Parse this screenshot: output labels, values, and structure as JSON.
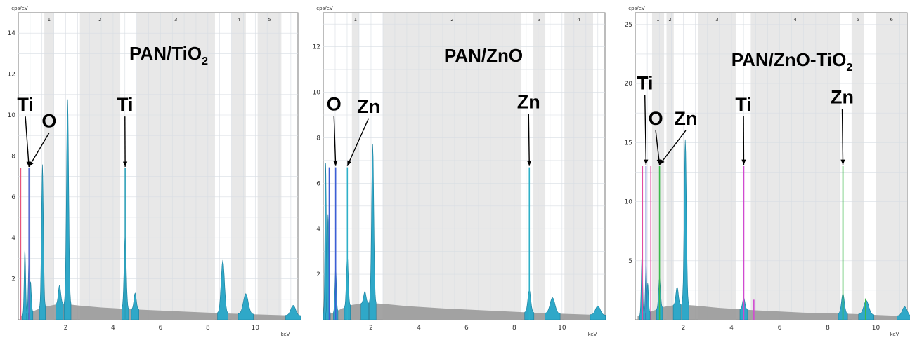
{
  "chart_data": [
    {
      "type": "area",
      "title": "PAN/TiO",
      "title_sub": "2",
      "ylabel": "cps/eV",
      "xlabel": "keV",
      "xlim": [
        0,
        11.8
      ],
      "ylim": [
        0,
        15
      ],
      "xticks": [
        2,
        4,
        6,
        8,
        10
      ],
      "yticks": [
        2,
        4,
        6,
        8,
        10,
        12,
        14
      ],
      "regions": [
        {
          "label": "1",
          "from": 1.1,
          "to": 1.5
        },
        {
          "label": "2",
          "from": 2.6,
          "to": 4.3
        },
        {
          "label": "3",
          "from": 5.0,
          "to": 8.3
        },
        {
          "label": "4",
          "from": 9.0,
          "to": 9.6
        },
        {
          "label": "5",
          "from": 10.1,
          "to": 11.1
        }
      ],
      "background": [
        [
          0.1,
          0.2
        ],
        [
          0.4,
          0.3
        ],
        [
          0.8,
          0.5
        ],
        [
          1.2,
          0.65
        ],
        [
          1.8,
          0.8
        ],
        [
          2.5,
          0.7
        ],
        [
          3.5,
          0.6
        ],
        [
          5,
          0.5
        ],
        [
          7,
          0.4
        ],
        [
          9,
          0.3
        ],
        [
          11.8,
          0.2
        ]
      ],
      "peaks": [
        {
          "x": 0.28,
          "y": 3.2,
          "w": 0.03
        },
        {
          "x": 0.45,
          "y": 2.6,
          "w": 0.03
        },
        {
          "x": 0.52,
          "y": 1.5,
          "w": 0.03
        },
        {
          "x": 1.02,
          "y": 7.0,
          "w": 0.04
        },
        {
          "x": 1.74,
          "y": 0.9,
          "w": 0.05
        },
        {
          "x": 2.08,
          "y": 10.0,
          "w": 0.045
        },
        {
          "x": 4.51,
          "y": 3.6,
          "w": 0.045
        },
        {
          "x": 4.93,
          "y": 0.8,
          "w": 0.05
        },
        {
          "x": 8.63,
          "y": 2.6,
          "w": 0.07
        },
        {
          "x": 9.6,
          "y": 1.0,
          "w": 0.1
        },
        {
          "x": 11.6,
          "y": 0.5,
          "w": 0.1
        }
      ],
      "element_lines": [
        {
          "x": 0.1,
          "y": 7.4,
          "color": "#e8547a"
        },
        {
          "x": 0.45,
          "y": 7.4,
          "color": "#5a6ecf"
        },
        {
          "x": 4.51,
          "y": 7.4,
          "color": "#2fa0b8"
        }
      ],
      "annotations": [
        {
          "text": "Ti",
          "x": 0.3,
          "y": 10.2
        },
        {
          "text": "O",
          "x": 1.3,
          "y": 9.4
        },
        {
          "text": "Ti",
          "x": 4.5,
          "y": 10.2
        }
      ]
    },
    {
      "type": "area",
      "title": "PAN/ZnO",
      "title_sub": "",
      "ylabel": "cps/eV",
      "xlabel": "keV",
      "xlim": [
        0,
        11.8
      ],
      "ylim": [
        0,
        13.5
      ],
      "xticks": [
        2,
        4,
        6,
        8,
        10
      ],
      "yticks": [
        2,
        4,
        6,
        8,
        10,
        12
      ],
      "regions": [
        {
          "label": "1",
          "from": 1.2,
          "to": 1.5
        },
        {
          "label": "2",
          "from": 2.5,
          "to": 8.3
        },
        {
          "label": "3",
          "from": 8.8,
          "to": 9.3
        },
        {
          "label": "4",
          "from": 10.1,
          "to": 11.3
        }
      ],
      "background": [
        [
          0.1,
          0.2
        ],
        [
          0.4,
          0.3
        ],
        [
          0.8,
          0.5
        ],
        [
          1.2,
          0.65
        ],
        [
          1.8,
          0.75
        ],
        [
          2.5,
          0.7
        ],
        [
          3.5,
          0.6
        ],
        [
          5,
          0.5
        ],
        [
          7,
          0.4
        ],
        [
          9,
          0.3
        ],
        [
          11.8,
          0.2
        ]
      ],
      "peaks": [
        {
          "x": 0.1,
          "y": 6.7,
          "w": 0.03
        },
        {
          "x": 0.2,
          "y": 4.4,
          "w": 0.03
        },
        {
          "x": 0.52,
          "y": 2.0,
          "w": 0.03
        },
        {
          "x": 1.01,
          "y": 2.2,
          "w": 0.04
        },
        {
          "x": 1.74,
          "y": 0.5,
          "w": 0.05
        },
        {
          "x": 2.07,
          "y": 7.0,
          "w": 0.045
        },
        {
          "x": 8.63,
          "y": 1.0,
          "w": 0.06
        },
        {
          "x": 9.6,
          "y": 0.7,
          "w": 0.1
        },
        {
          "x": 11.5,
          "y": 0.4,
          "w": 0.1
        }
      ],
      "element_lines": [
        {
          "x": 0.25,
          "y": 6.7,
          "color": "#3d5fd6"
        },
        {
          "x": 0.52,
          "y": 6.7,
          "color": "#3d5fd6"
        },
        {
          "x": 1.01,
          "y": 6.7,
          "color": "#2fb0c8"
        },
        {
          "x": 8.63,
          "y": 6.7,
          "color": "#2fb0c8"
        }
      ],
      "annotations": [
        {
          "text": "O",
          "x": 0.45,
          "y": 9.2
        },
        {
          "text": "Zn",
          "x": 1.9,
          "y": 9.1
        },
        {
          "text": "Zn",
          "x": 8.6,
          "y": 9.3
        }
      ]
    },
    {
      "type": "area",
      "title": "PAN/ZnO-TiO",
      "title_sub": "2",
      "ylabel": "cps/eV",
      "xlabel": "keV",
      "xlim": [
        0,
        11.3
      ],
      "ylim": [
        0,
        26
      ],
      "xticks": [
        2,
        4,
        6,
        8,
        10
      ],
      "yticks": [
        5,
        10,
        15,
        20,
        25
      ],
      "regions": [
        {
          "label": "1",
          "from": 0.7,
          "to": 1.2
        },
        {
          "label": "2",
          "from": 1.3,
          "to": 1.6
        },
        {
          "label": "3",
          "from": 2.6,
          "to": 4.2
        },
        {
          "label": "4",
          "from": 4.8,
          "to": 8.5
        },
        {
          "label": "5",
          "from": 9.0,
          "to": 9.5
        },
        {
          "label": "6",
          "from": 10.0,
          "to": 11.3
        }
      ],
      "background": [
        [
          0.1,
          0.3
        ],
        [
          0.4,
          0.5
        ],
        [
          0.8,
          0.8
        ],
        [
          1.2,
          1.1
        ],
        [
          1.8,
          1.3
        ],
        [
          2.5,
          1.2
        ],
        [
          3.5,
          1.0
        ],
        [
          5,
          0.8
        ],
        [
          7,
          0.6
        ],
        [
          9,
          0.5
        ],
        [
          11.3,
          0.3
        ]
      ],
      "peaks": [
        {
          "x": 0.28,
          "y": 5.0,
          "w": 0.03
        },
        {
          "x": 0.45,
          "y": 4.2,
          "w": 0.03
        },
        {
          "x": 0.52,
          "y": 2.5,
          "w": 0.03
        },
        {
          "x": 1.01,
          "y": 2.6,
          "w": 0.04
        },
        {
          "x": 1.74,
          "y": 1.5,
          "w": 0.05
        },
        {
          "x": 2.08,
          "y": 14.0,
          "w": 0.045
        },
        {
          "x": 4.51,
          "y": 1.0,
          "w": 0.05
        },
        {
          "x": 8.63,
          "y": 1.7,
          "w": 0.06
        },
        {
          "x": 9.6,
          "y": 1.2,
          "w": 0.1
        },
        {
          "x": 11.2,
          "y": 0.8,
          "w": 0.1
        }
      ],
      "element_lines": [
        {
          "x": 0.3,
          "y": 13.0,
          "color": "#e04aa0"
        },
        {
          "x": 0.45,
          "y": 13.0,
          "color": "#5a6ecf"
        },
        {
          "x": 0.65,
          "y": 13.0,
          "color": "#e04aa0"
        },
        {
          "x": 1.01,
          "y": 13.0,
          "color": "#3cb84a"
        },
        {
          "x": 4.51,
          "y": 13.0,
          "color": "#d04ad0"
        },
        {
          "x": 4.93,
          "y": 1.7,
          "color": "#d04ad0"
        },
        {
          "x": 8.63,
          "y": 13.0,
          "color": "#3cb84a"
        },
        {
          "x": 9.57,
          "y": 1.8,
          "color": "#3cb84a"
        }
      ],
      "annotations": [
        {
          "text": "Ti",
          "x": 0.4,
          "y": 19.5
        },
        {
          "text": "O",
          "x": 0.85,
          "y": 16.5
        },
        {
          "text": "Zn",
          "x": 2.1,
          "y": 16.5
        },
        {
          "text": "Ti",
          "x": 4.5,
          "y": 17.7
        },
        {
          "text": "Zn",
          "x": 8.6,
          "y": 18.3
        }
      ]
    }
  ],
  "colors": {
    "spectrum_fill": "#2fa8c8",
    "spectrum_stroke": "#1a7f9c",
    "background_fill": "#9a9a9a",
    "region_fill": "#e8e8e8",
    "grid": "#d8dde3",
    "axis": "#7a7a7a"
  }
}
